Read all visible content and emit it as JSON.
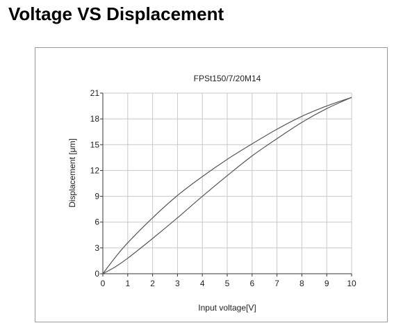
{
  "page": {
    "heading": "Voltage VS Displacement"
  },
  "chart_data": {
    "type": "line",
    "title": "FPSt150/7/20M14",
    "xlabel": "Input voltage[V]",
    "ylabel": "Displacement [μm]",
    "xlim": [
      0,
      10
    ],
    "ylim": [
      0,
      21
    ],
    "xticks": [
      0,
      1,
      2,
      3,
      4,
      5,
      6,
      7,
      8,
      9,
      10
    ],
    "yticks": [
      0,
      3,
      6,
      9,
      12,
      15,
      18,
      21
    ],
    "grid": true,
    "legend": "none",
    "series": [
      {
        "x": [
          0,
          0.5,
          1,
          2,
          3,
          4,
          5,
          6,
          7,
          8,
          9,
          10
        ],
        "y": [
          0,
          1.9,
          3.6,
          6.5,
          9.1,
          11.3,
          13.3,
          15.1,
          16.8,
          18.3,
          19.5,
          20.5
        ]
      },
      {
        "x": [
          0,
          0.5,
          1,
          2,
          3,
          4,
          5,
          6,
          7,
          8,
          9,
          10
        ],
        "y": [
          0,
          0.8,
          1.8,
          4.1,
          6.5,
          9.0,
          11.4,
          13.7,
          15.7,
          17.6,
          19.2,
          20.5
        ]
      }
    ],
    "colors": {
      "line": "#555555",
      "grid": "#c8c8c8",
      "axis": "#333333"
    }
  }
}
